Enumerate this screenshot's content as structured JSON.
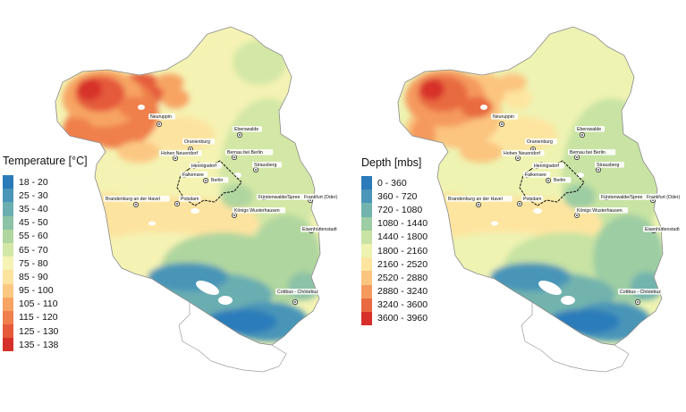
{
  "maps": [
    {
      "legend_title": "Temperature [°C]",
      "classes": [
        {
          "label": "18 - 20",
          "color": "#2b7bba"
        },
        {
          "label": "25 - 30",
          "color": "#4a95b8"
        },
        {
          "label": "35 - 40",
          "color": "#6aaeb1"
        },
        {
          "label": "45 - 50",
          "color": "#8cc2a6"
        },
        {
          "label": "55 - 60",
          "color": "#b0d69f"
        },
        {
          "label": "65 - 70",
          "color": "#d3e7a6"
        },
        {
          "label": "75 - 80",
          "color": "#f4f3b3"
        },
        {
          "label": "85 - 90",
          "color": "#fde3a0"
        },
        {
          "label": "95 - 100",
          "color": "#fbc883"
        },
        {
          "label": "105 - 110",
          "color": "#f7a464"
        },
        {
          "label": "115 - 120",
          "color": "#ef7f4c"
        },
        {
          "label": "125 - 130",
          "color": "#e45a3b"
        },
        {
          "label": "135 - 138",
          "color": "#d7302a"
        }
      ]
    },
    {
      "legend_title": "Depth [mbs]",
      "classes": [
        {
          "label": "0 - 360",
          "color": "#2b7bba"
        },
        {
          "label": "360 - 720",
          "color": "#4a95b8"
        },
        {
          "label": "720 - 1080",
          "color": "#72b3ad"
        },
        {
          "label": "1080 - 1440",
          "color": "#9dcda3"
        },
        {
          "label": "1440 - 1800",
          "color": "#c8e3a3"
        },
        {
          "label": "1800 - 2160",
          "color": "#eef3b2"
        },
        {
          "label": "2160 - 2520",
          "color": "#fde5a0"
        },
        {
          "label": "2520 - 2880",
          "color": "#fbc47f"
        },
        {
          "label": "2880 - 3240",
          "color": "#f59a5e"
        },
        {
          "label": "3240 - 3600",
          "color": "#e86a41"
        },
        {
          "label": "3600 - 3960",
          "color": "#d7302a"
        }
      ]
    }
  ],
  "cities": [
    "Neuruppin",
    "Oranienburg",
    "Eberswalde",
    "Hohen Neuendorf",
    "Bernau bei Berlin",
    "Hennigsdorf",
    "Falkensee",
    "Berlin",
    "Strausberg",
    "Brandenburg an der Havel",
    "Potsdam",
    "Fürstenwalde/Spree",
    "Frankfurt (Oder)",
    "Königs Wusterhausen",
    "Eisenhüttenstadt",
    "Cottbus - Chóśebuz"
  ]
}
